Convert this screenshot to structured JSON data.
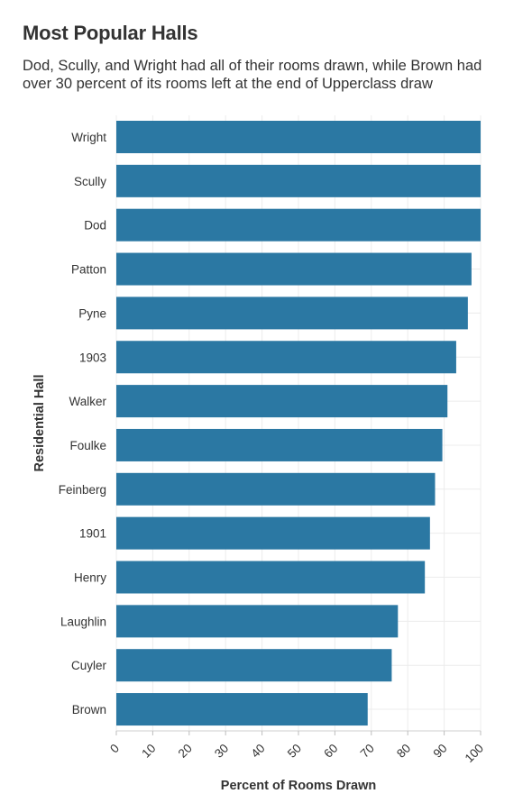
{
  "chart_data": {
    "type": "bar",
    "orientation": "horizontal",
    "title": "Most Popular Halls",
    "subtitle": "Dod, Scully, and Wright had all of their rooms drawn, while Brown had over 30 percent of its rooms left at the end of Upperclass draw",
    "xlabel": "Percent of Rooms Drawn",
    "ylabel": "Residential Hall",
    "xlim": [
      0,
      100
    ],
    "xticks": [
      0,
      10,
      20,
      30,
      40,
      50,
      60,
      70,
      80,
      90,
      100
    ],
    "grid": true,
    "bar_color": "#2b78a3",
    "categories": [
      "Wright",
      "Scully",
      "Dod",
      "Patton",
      "Pyne",
      "1903",
      "Walker",
      "Foulke",
      "Feinberg",
      "1901",
      "Henry",
      "Laughlin",
      "Cuyler",
      "Brown"
    ],
    "values": [
      100,
      100,
      100,
      97.5,
      96.5,
      93.3,
      90.9,
      89.5,
      87.5,
      86.1,
      84.7,
      77.3,
      75.6,
      69
    ]
  }
}
